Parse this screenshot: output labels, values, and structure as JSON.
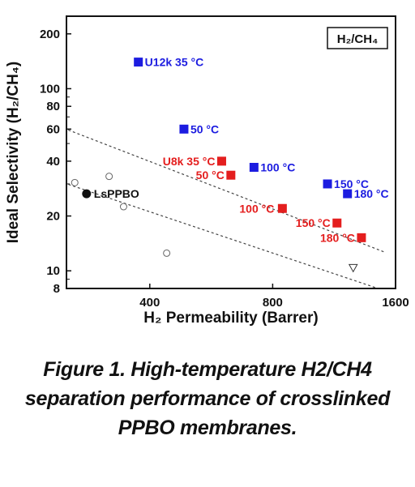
{
  "chart_data": {
    "type": "scatter",
    "xlabel": "H₂ Permeability (Barrer)",
    "ylabel": "Ideal Selectivity (H₂/CH₄)",
    "xscale": "log",
    "yscale": "log",
    "xlim": [
      250,
      1600
    ],
    "ylim": [
      8,
      250
    ],
    "xticks": [
      "400",
      "800",
      "1600"
    ],
    "xtick_values": [
      400,
      800,
      1600
    ],
    "yticks": [
      "8",
      "10",
      "20",
      "40",
      "60",
      "80",
      "100",
      "200"
    ],
    "ytick_values": [
      8,
      10,
      20,
      40,
      60,
      80,
      100,
      200
    ],
    "legend_box": "H₂/CH₄",
    "legend_placement": "top-right",
    "grid": false,
    "colors": {
      "blue": "#1c1ce0",
      "red": "#e41e1e",
      "black": "#111111",
      "gray": "#666666"
    },
    "series": [
      {
        "marker": "square",
        "color": "#1c1ce0",
        "points": [
          {
            "x": 375,
            "y": 140,
            "label": "U12k 35 °C"
          },
          {
            "x": 485,
            "y": 60,
            "label": "50 °C"
          },
          {
            "x": 720,
            "y": 37,
            "label": "100 °C"
          },
          {
            "x": 1090,
            "y": 30,
            "label": "150 °C"
          },
          {
            "x": 1220,
            "y": 26.5,
            "label": "180 °C"
          }
        ]
      },
      {
        "marker": "square",
        "color": "#e41e1e",
        "points": [
          {
            "x": 600,
            "y": 40,
            "label": "U8k 35 °C"
          },
          {
            "x": 632,
            "y": 33.5,
            "label": "50 °C"
          },
          {
            "x": 845,
            "y": 22,
            "label": "100 °C"
          },
          {
            "x": 1150,
            "y": 18.3,
            "label": "150 °C"
          },
          {
            "x": 1320,
            "y": 15.2,
            "label": "180 °C"
          }
        ]
      },
      {
        "marker": "filled-circle",
        "color": "#111111",
        "points": [
          {
            "x": 280,
            "y": 26.5,
            "label": "LsPPBO"
          }
        ]
      },
      {
        "marker": "open-circle",
        "color": "#666666",
        "points": [
          {
            "x": 262,
            "y": 30.5
          },
          {
            "x": 318,
            "y": 33
          },
          {
            "x": 345,
            "y": 22.5
          },
          {
            "x": 440,
            "y": 12.5
          }
        ]
      },
      {
        "marker": "open-triangle",
        "color": "#333333",
        "points": [
          {
            "x": 1260,
            "y": 10.4
          }
        ]
      }
    ],
    "upper_bounds": [
      {
        "style": "dashed",
        "x": [
          240,
          1500
        ],
        "y": [
          62,
          12.7
        ]
      },
      {
        "style": "dashed",
        "x": [
          240,
          1450
        ],
        "y": [
          31,
          8
        ]
      }
    ]
  },
  "caption": {
    "line1": "Figure 1. High-temperature H2/CH4",
    "line2": "separation performance of crosslinked",
    "line3": "PPBO membranes."
  }
}
